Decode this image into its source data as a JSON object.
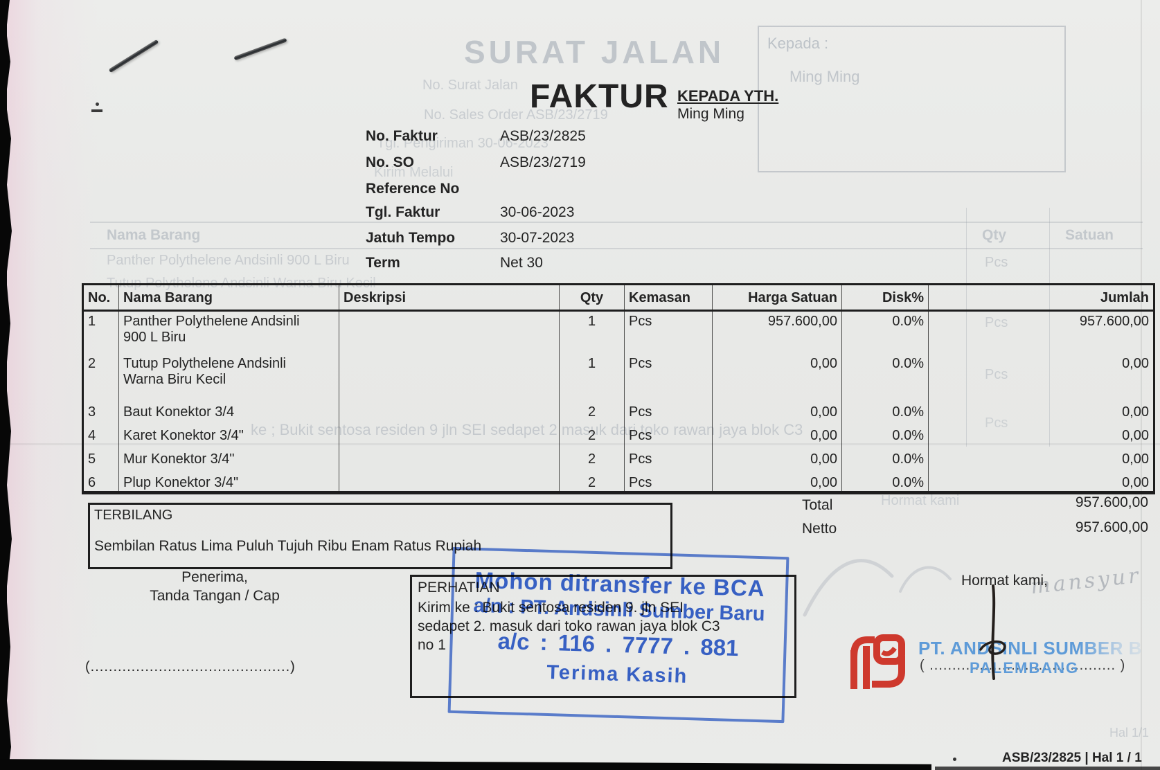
{
  "title": "FAKTUR",
  "recipient": {
    "label": "KEPADA YTH.",
    "name": "Ming Ming"
  },
  "info": {
    "rows": [
      {
        "label": "No. Faktur",
        "value": "ASB/23/2825"
      },
      {
        "label": "No. SO",
        "value": "ASB/23/2719"
      },
      {
        "label": "Reference No",
        "value": ""
      },
      {
        "label": "Tgl. Faktur",
        "value": "30-06-2023"
      },
      {
        "label": "Jatuh Tempo",
        "value": "30-07-2023"
      },
      {
        "label": "Term",
        "value": "Net 30"
      }
    ]
  },
  "table": {
    "headers": [
      "No.",
      "Nama Barang",
      "Deskripsi",
      "Qty",
      "Kemasan",
      "Harga Satuan",
      "Disk%",
      "Jumlah"
    ],
    "items": [
      {
        "no": "1",
        "name": "Panther Polythelene Andsinli\n900 L Biru",
        "desc": "",
        "qty": "1",
        "kemasan": "Pcs",
        "harga": "957.600,00",
        "disk": "0.0%",
        "jumlah": "957.600,00"
      },
      {
        "no": "2",
        "name": "Tutup Polythelene Andsinli\nWarna Biru Kecil",
        "desc": "",
        "qty": "1",
        "kemasan": "Pcs",
        "harga": "0,00",
        "disk": "0.0%",
        "jumlah": "0,00"
      },
      {
        "no": "3",
        "name": "Baut Konektor 3/4",
        "desc": "",
        "qty": "2",
        "kemasan": "Pcs",
        "harga": "0,00",
        "disk": "0.0%",
        "jumlah": "0,00"
      },
      {
        "no": "4",
        "name": "Karet Konektor 3/4\"",
        "desc": "",
        "qty": "2",
        "kemasan": "Pcs",
        "harga": "0,00",
        "disk": "0.0%",
        "jumlah": "0,00"
      },
      {
        "no": "5",
        "name": "Mur Konektor 3/4\"",
        "desc": "",
        "qty": "2",
        "kemasan": "Pcs",
        "harga": "0,00",
        "disk": "0.0%",
        "jumlah": "0,00"
      },
      {
        "no": "6",
        "name": "Plup Konektor 3/4\"",
        "desc": "",
        "qty": "2",
        "kemasan": "Pcs",
        "harga": "0,00",
        "disk": "0.0%",
        "jumlah": "0,00"
      }
    ]
  },
  "summary": {
    "total_label": "Total",
    "total_value": "957.600,00",
    "netto_label": "Netto",
    "netto_value": "957.600,00"
  },
  "terbilang": {
    "label": "TERBILANG",
    "text": "Sembilan Ratus Lima Puluh Tujuh Ribu Enam Ratus Rupiah"
  },
  "receiver": {
    "line1": "Penerima,",
    "line2": "Tanda Tangan / Cap",
    "dots": "(............................................)"
  },
  "attention": {
    "title": "PERHATIAN",
    "line1": "Kirim ke :  Bukit sentosa residen 9. jln SEI",
    "line2": "sedapet 2. masuk dari toko rawan jaya blok C3",
    "line3": "no 1"
  },
  "bank_stamp": {
    "color": "#2b5cd4",
    "line1": "Mohon ditransfer ke BCA",
    "line2": "a/n : PT. Andsinli Sumber Baru",
    "line3": "a/c : 116 . 7777 . 881",
    "line4": "Terima Kasih"
  },
  "signoff": {
    "text": "Hormat kami,"
  },
  "company_stamp": {
    "name": "PT. ANDSINLI SUMBER B",
    "city": "PALEMBANG",
    "dots": "( ......................................... )",
    "logo_color": "#cc2a1e",
    "text_color": "#5e9bd8"
  },
  "footer": {
    "ref": "ASB/23/2825 | Hal 1 / 1"
  },
  "ghosts": {
    "back_title": "SURAT JALAN",
    "kepada": "Kepada :",
    "kepada_name": "Ming Ming",
    "line1": "No. Surat Jalan",
    "line2": "No. Sales Order     ASB/23/2719",
    "line3": "Tgl. Pengiriman     30-06-2023",
    "line4": "Kirim Melalui",
    "th_name": "Nama Barang",
    "th_qty": "Qty",
    "th_satuan": "Satuan",
    "item1": "Panther Polythelene Andsinli 900 L Biru",
    "item2": "Tutup Polythelene Andsinli  Warna Biru Kecil",
    "pcs": "Pcs",
    "mid_line": "ke ;  Bukit sentosa residen 9  jln SEI sedapet 2  masuk dari toko rawan jaya blok C3",
    "hormat": "Hormat kami",
    "hal": "Hal 1/1",
    "handwriting": "mansyur"
  }
}
